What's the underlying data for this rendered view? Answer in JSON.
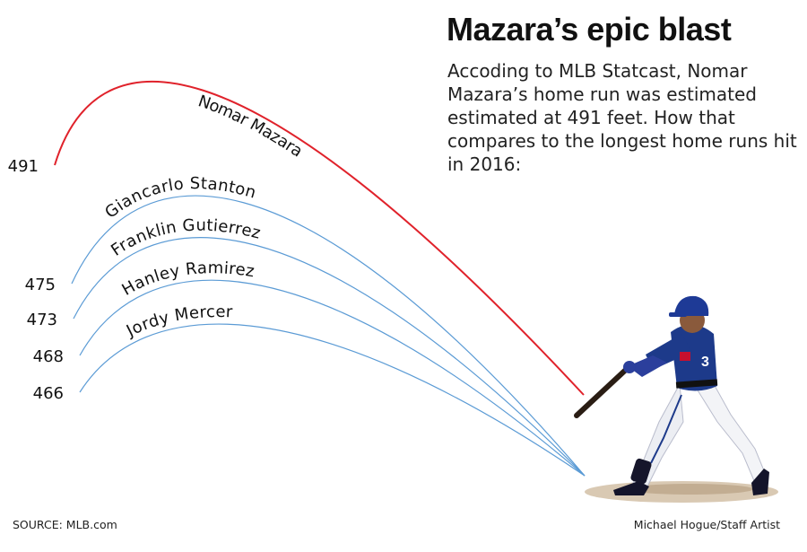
{
  "header": {
    "title": "Mazara’s epic blast",
    "subtitle": "Accoding to MLB Statcast, Nomar Mazara’s home run was estimated estimated at 491 feet. How that compares to the longest home runs hit in 2016:"
  },
  "footer": {
    "source": "SOURCE: MLB.com",
    "credit": "Michael Hogue/Staff Artist"
  },
  "colors": {
    "highlight": "#e0222b",
    "other": "#5b9bd5",
    "ground": "#d9c9b3",
    "jersey": "#1d3a8a",
    "text": "#111111"
  },
  "chart_data": {
    "type": "line",
    "unit": "feet",
    "series": [
      {
        "name": "Nomar Mazara",
        "value": 491,
        "label": "491",
        "highlight": true
      },
      {
        "name": "Giancarlo Stanton",
        "value": 475,
        "label": "475",
        "highlight": false
      },
      {
        "name": "Franklin Gutierrez",
        "value": 473,
        "label": "473",
        "highlight": false
      },
      {
        "name": "Hanley Ramirez",
        "value": 468,
        "label": "468",
        "highlight": false
      },
      {
        "name": "Jordy Mercer",
        "value": 466,
        "label": "466",
        "highlight": false
      }
    ]
  },
  "illustration": {
    "name": "batter-photo",
    "icon": "baseball-batter-swinging"
  }
}
